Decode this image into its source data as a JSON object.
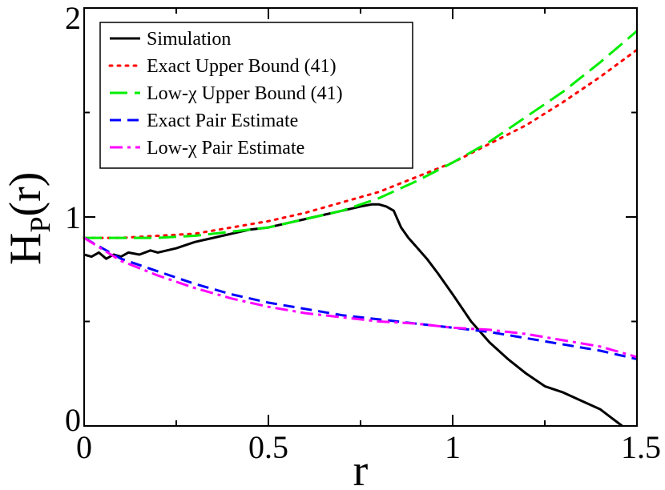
{
  "chart_data": {
    "type": "line",
    "title": "",
    "xlabel": "r",
    "ylabel": "H",
    "ylabel_sub": "P",
    "ylabel_suffix": "(r)",
    "xlim": [
      0,
      1.5
    ],
    "ylim": [
      0,
      2
    ],
    "xticks": [
      0,
      0.5,
      1,
      1.5
    ],
    "xtick_labels": [
      "0",
      "0.5",
      "1",
      "1.5"
    ],
    "yticks": [
      0,
      1,
      2
    ],
    "ytick_labels": [
      "0",
      "1",
      "2"
    ],
    "legend_position": "top-left",
    "series": [
      {
        "name": "Simulation",
        "color": "#000000",
        "style": "solid",
        "x": [
          0,
          0.02,
          0.04,
          0.06,
          0.08,
          0.1,
          0.12,
          0.15,
          0.18,
          0.2,
          0.25,
          0.3,
          0.35,
          0.4,
          0.45,
          0.5,
          0.55,
          0.6,
          0.65,
          0.7,
          0.75,
          0.78,
          0.8,
          0.82,
          0.84,
          0.86,
          0.88,
          0.9,
          0.93,
          0.96,
          1.0,
          1.05,
          1.1,
          1.15,
          1.2,
          1.25,
          1.3,
          1.35,
          1.4,
          1.43,
          1.46
        ],
        "y": [
          0.82,
          0.81,
          0.83,
          0.8,
          0.82,
          0.81,
          0.83,
          0.82,
          0.84,
          0.83,
          0.85,
          0.88,
          0.9,
          0.92,
          0.94,
          0.95,
          0.97,
          0.99,
          1.01,
          1.03,
          1.05,
          1.06,
          1.06,
          1.05,
          1.03,
          0.95,
          0.9,
          0.86,
          0.8,
          0.73,
          0.63,
          0.5,
          0.4,
          0.32,
          0.25,
          0.19,
          0.16,
          0.12,
          0.08,
          0.04,
          0.0
        ]
      },
      {
        "name": "Exact Upper Bound (41)",
        "color": "#ff0000",
        "style": "dotted",
        "x": [
          0,
          0.1,
          0.2,
          0.3,
          0.4,
          0.5,
          0.6,
          0.7,
          0.8,
          0.9,
          1.0,
          1.1,
          1.2,
          1.3,
          1.4,
          1.5
        ],
        "y": [
          0.9,
          0.9,
          0.91,
          0.92,
          0.95,
          0.98,
          1.02,
          1.07,
          1.12,
          1.19,
          1.26,
          1.35,
          1.44,
          1.55,
          1.67,
          1.8
        ]
      },
      {
        "name": "Low-χ Upper Bound (41)",
        "color": "#00ee00",
        "style": "long-dash",
        "x": [
          0,
          0.1,
          0.2,
          0.3,
          0.4,
          0.5,
          0.6,
          0.7,
          0.8,
          0.9,
          1.0,
          1.1,
          1.2,
          1.3,
          1.4,
          1.5
        ],
        "y": [
          0.9,
          0.9,
          0.9,
          0.91,
          0.93,
          0.95,
          0.99,
          1.03,
          1.09,
          1.17,
          1.26,
          1.36,
          1.48,
          1.6,
          1.74,
          1.89
        ]
      },
      {
        "name": "Exact Pair Estimate",
        "color": "#0000ff",
        "style": "dash",
        "x": [
          0,
          0.1,
          0.2,
          0.3,
          0.4,
          0.5,
          0.6,
          0.7,
          0.8,
          0.9,
          1.0,
          1.1,
          1.2,
          1.3,
          1.4,
          1.5
        ],
        "y": [
          0.9,
          0.8,
          0.74,
          0.68,
          0.63,
          0.59,
          0.56,
          0.53,
          0.51,
          0.49,
          0.47,
          0.45,
          0.42,
          0.39,
          0.36,
          0.32
        ]
      },
      {
        "name": "Low-χ Pair Estimate",
        "color": "#ff00ff",
        "style": "dash-dot",
        "x": [
          0,
          0.1,
          0.2,
          0.3,
          0.4,
          0.5,
          0.6,
          0.7,
          0.8,
          0.9,
          1.0,
          1.1,
          1.2,
          1.3,
          1.4,
          1.5
        ],
        "y": [
          0.9,
          0.79,
          0.72,
          0.66,
          0.61,
          0.57,
          0.54,
          0.52,
          0.5,
          0.49,
          0.47,
          0.46,
          0.44,
          0.41,
          0.38,
          0.33
        ]
      }
    ]
  }
}
